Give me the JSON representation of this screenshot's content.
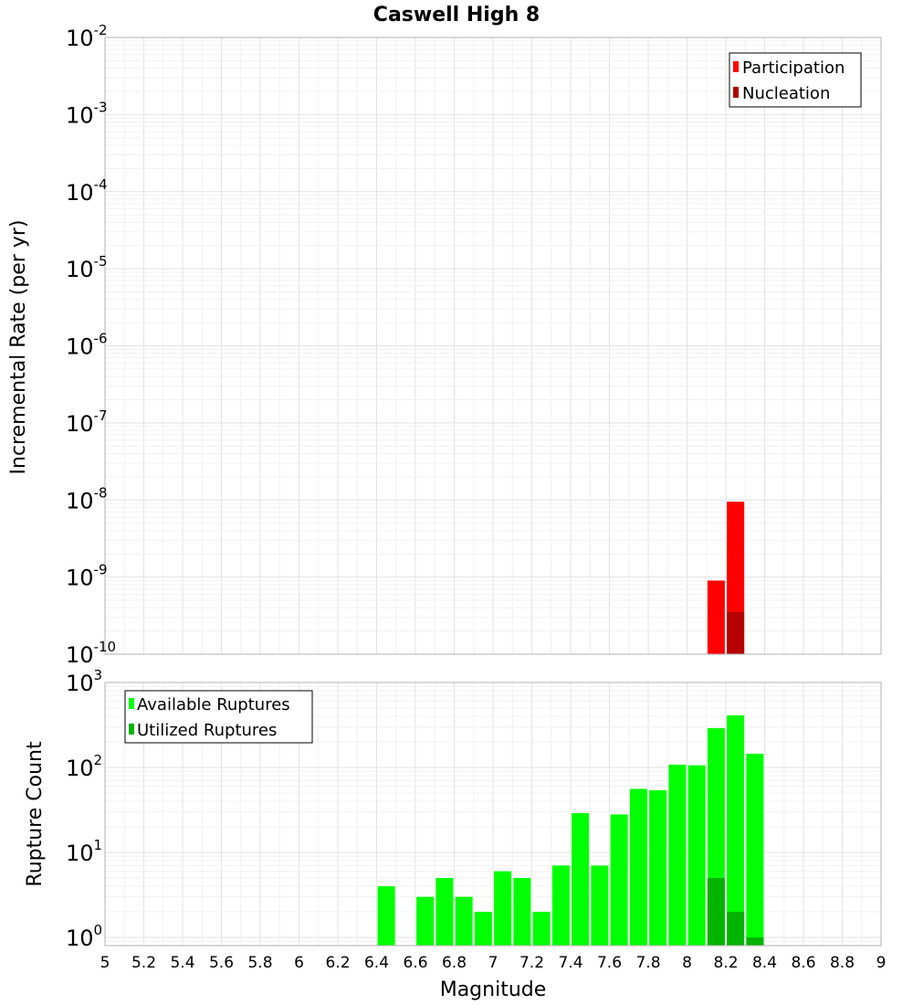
{
  "chart_data": [
    {
      "type": "bar",
      "title": "Caswell High 8",
      "ylabel": "Incremental Rate (per yr)",
      "yscale": "log",
      "ylim": [
        1e-10,
        0.01
      ],
      "xlim": [
        5,
        9
      ],
      "legend_position": "top-right",
      "grid": true,
      "y_ticks": [
        {
          "base": "10",
          "exp": "-2"
        },
        {
          "base": "10",
          "exp": "-3"
        },
        {
          "base": "10",
          "exp": "-4"
        },
        {
          "base": "10",
          "exp": "-5"
        },
        {
          "base": "10",
          "exp": "-6"
        },
        {
          "base": "10",
          "exp": "-7"
        },
        {
          "base": "10",
          "exp": "-8"
        },
        {
          "base": "10",
          "exp": "-9"
        },
        {
          "base": "10",
          "exp": "-10"
        }
      ],
      "series": [
        {
          "name": "Participation",
          "color": "#ff0000",
          "x": [
            8.15,
            8.25
          ],
          "values": [
            9e-10,
            9.5e-09
          ]
        },
        {
          "name": "Nucleation",
          "color": "#b40000",
          "x": [
            8.25
          ],
          "values": [
            3.5e-10
          ]
        }
      ]
    },
    {
      "type": "bar",
      "xlabel": "Magnitude",
      "ylabel": "Rupture Count",
      "yscale": "log",
      "ylim": [
        0.8,
        1000
      ],
      "xlim": [
        5,
        9
      ],
      "legend_position": "top-left",
      "grid": true,
      "y_ticks": [
        {
          "base": "10",
          "exp": "3"
        },
        {
          "base": "10",
          "exp": "2"
        },
        {
          "base": "10",
          "exp": "1"
        },
        {
          "base": "10",
          "exp": "0"
        }
      ],
      "x_ticks": [
        "5",
        "5.2",
        "5.4",
        "5.6",
        "5.8",
        "6",
        "6.2",
        "6.4",
        "6.6",
        "6.8",
        "7",
        "7.2",
        "7.4",
        "7.6",
        "7.8",
        "8",
        "8.2",
        "8.4",
        "8.6",
        "8.8",
        "9"
      ],
      "series": [
        {
          "name": "Available Ruptures",
          "color": "#00ff00",
          "x": [
            6.45,
            6.65,
            6.75,
            6.85,
            6.95,
            7.05,
            7.15,
            7.25,
            7.35,
            7.45,
            7.55,
            7.65,
            7.75,
            7.85,
            7.95,
            8.05,
            8.15,
            8.25,
            8.35
          ],
          "values": [
            4,
            3,
            5,
            3,
            2,
            6,
            5,
            2,
            7,
            29,
            7,
            28,
            56,
            54,
            108,
            106,
            290,
            410,
            145
          ]
        },
        {
          "name": "Utilized Ruptures",
          "color": "#00b400",
          "x": [
            8.15,
            8.25,
            8.35
          ],
          "values": [
            5,
            2,
            1
          ]
        }
      ]
    }
  ]
}
